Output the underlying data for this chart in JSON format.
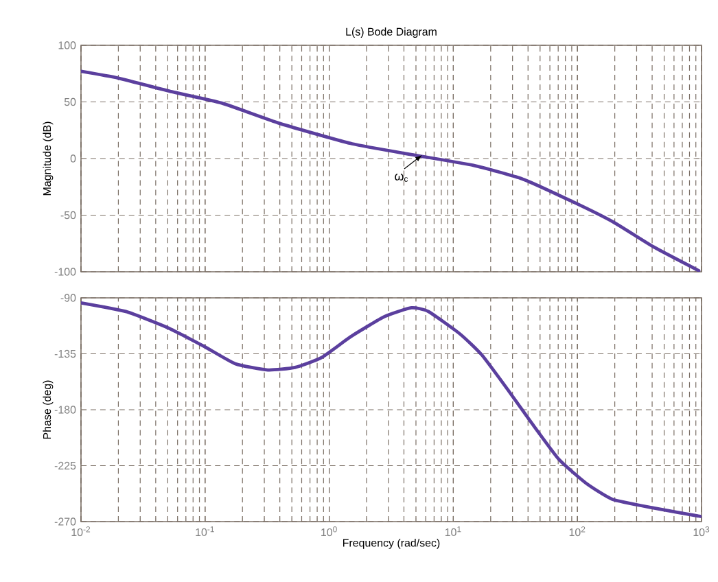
{
  "chart_data": [
    {
      "type": "line",
      "title": "L(s) Bode Diagram",
      "ylabel": "Magnitude (dB)",
      "log": "x",
      "grid": true,
      "xlim": [
        0.01,
        1000
      ],
      "xticks": [
        {
          "value": 0.01,
          "label": null
        },
        {
          "value": 0.1,
          "label": null
        },
        {
          "value": 1,
          "label": null
        },
        {
          "value": 10,
          "label": null
        },
        {
          "value": 100,
          "label": null
        },
        {
          "value": 1000,
          "label": null
        }
      ],
      "ylim": [
        -100,
        100
      ],
      "yticks": [
        -100,
        -50,
        0,
        50,
        100
      ],
      "tick_labels": "y",
      "annotations": [
        {
          "text": "ω$_{c}$",
          "x": 5.6,
          "y": 3
        }
      ],
      "series": [
        {
          "color": "#5b3f9e",
          "x": [
            0.01,
            0.02,
            0.054,
            0.136,
            0.4,
            1.53,
            4.9,
            14.5,
            36,
            91,
            194,
            410,
            950
          ],
          "values": [
            77,
            71,
            59,
            49,
            31,
            13,
            3,
            -6,
            -18,
            -38,
            -56,
            -78,
            -99
          ]
        }
      ]
    },
    {
      "type": "line",
      "xlabel": "Frequency (rad/sec)",
      "ylabel": "Phase (deg)",
      "log": "x",
      "grid": true,
      "xlim": [
        0.01,
        1000
      ],
      "xticks": [
        {
          "value": 0.01,
          "label": "10$^{-2}$"
        },
        {
          "value": 0.1,
          "label": "10$^{-1}$"
        },
        {
          "value": 1,
          "label": "10$^{0}$"
        },
        {
          "value": 10,
          "label": "10$^{1}$"
        },
        {
          "value": 100,
          "label": "10$^{2}$"
        },
        {
          "value": 1000,
          "label": "10$^{3}$"
        }
      ],
      "ylim": [
        -270,
        -90
      ],
      "yticks": [
        -270,
        -225,
        -180,
        -135,
        -90
      ],
      "series": [
        {
          "color": "#5b3f9e",
          "x": [
            0.01,
            0.023,
            0.05,
            0.098,
            0.175,
            0.32,
            0.53,
            0.87,
            1.5,
            2.8,
            4.6,
            6.3,
            11.3,
            17,
            28,
            43,
            71,
            117,
            191,
            410,
            1000
          ],
          "values": [
            -94,
            -101,
            -114,
            -129,
            -143,
            -148,
            -146,
            -138,
            -121,
            -105,
            -98,
            -101,
            -119,
            -136,
            -165,
            -191,
            -220,
            -239,
            -252,
            -259,
            -266
          ]
        }
      ]
    }
  ]
}
